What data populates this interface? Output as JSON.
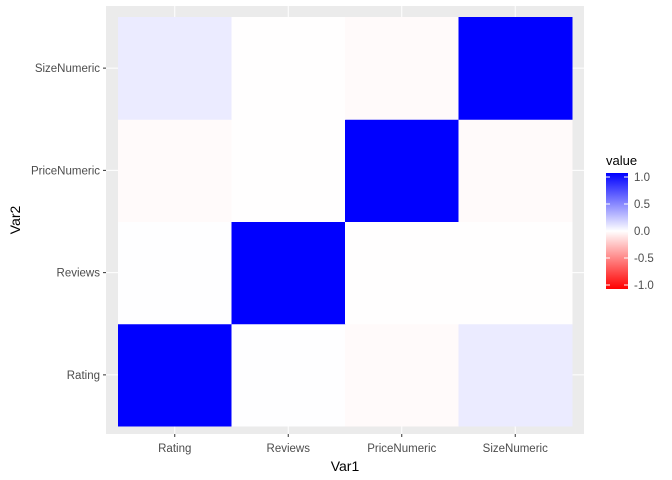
{
  "chart_data": {
    "type": "heatmap",
    "x_categories": [
      "Rating",
      "Reviews",
      "PriceNumeric",
      "SizeNumeric"
    ],
    "y_categories": [
      "Rating",
      "Reviews",
      "PriceNumeric",
      "SizeNumeric"
    ],
    "matrix": [
      [
        1.0,
        0.002,
        -0.02,
        0.08
      ],
      [
        0.002,
        1.0,
        -0.005,
        -0.004
      ],
      [
        -0.02,
        -0.005,
        1.0,
        -0.02
      ],
      [
        0.08,
        -0.004,
        -0.02,
        1.0
      ]
    ],
    "xlabel": "Var1",
    "ylabel": "Var2",
    "legend": {
      "title": "value",
      "position": "right",
      "ticks": [
        1.0,
        0.5,
        0.0,
        -0.5,
        -1.0
      ],
      "tick_labels": [
        "1.0",
        "0.5",
        "0.0",
        "-0.5",
        "-1.0"
      ],
      "limits": [
        -1,
        1
      ]
    },
    "colors": {
      "high": "#0000ff",
      "mid": "#ffffff",
      "low": "#ff0000",
      "panel_background": "#ebebeb",
      "grid": "#ffffff"
    }
  }
}
